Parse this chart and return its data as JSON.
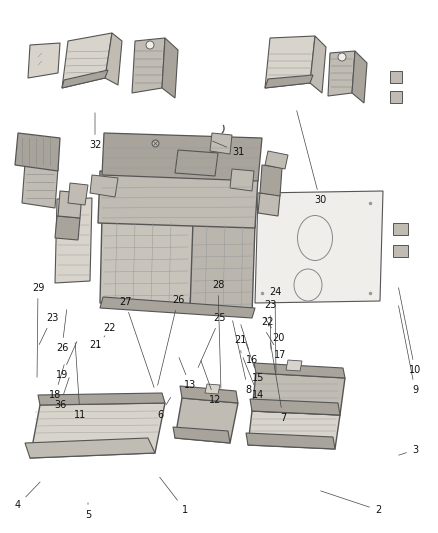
{
  "background_color": "#ffffff",
  "fig_width": 4.38,
  "fig_height": 5.33,
  "dpi": 100,
  "line_color": "#555555",
  "label_fontsize": 7.0,
  "label_color": "#111111",
  "callout_lw": 0.5,
  "part_lw": 0.8,
  "fill_light": "#d8d4cc",
  "fill_medium": "#c0bcb4",
  "fill_dark": "#a8a49c",
  "fill_frame": "#b0aca4",
  "fill_white": "#f0eeea"
}
